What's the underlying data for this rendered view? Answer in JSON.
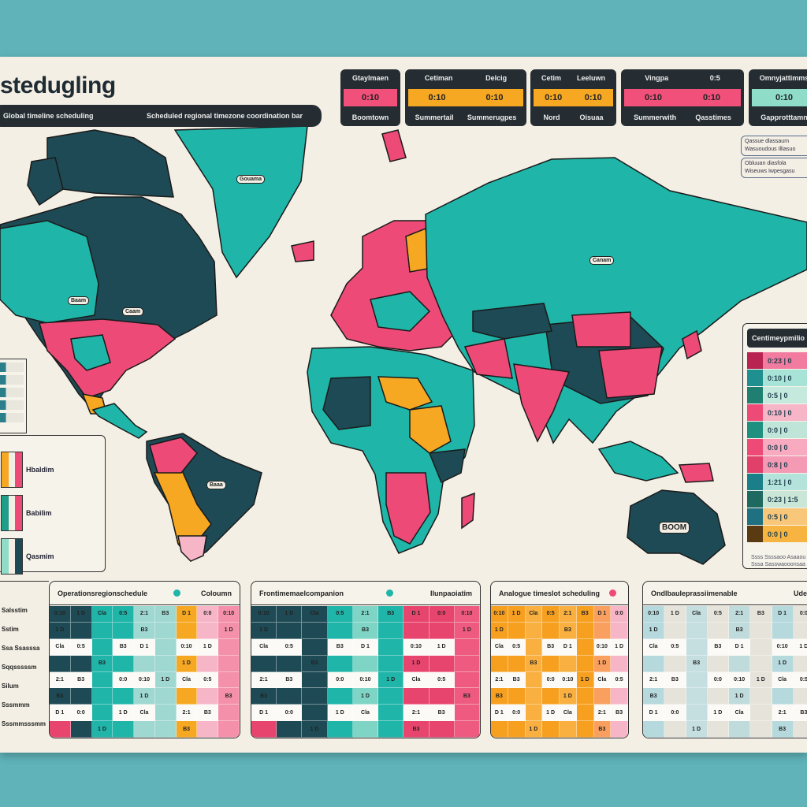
{
  "header": {
    "title": "stedugling",
    "subtitle_left": "Global timeline scheduling",
    "subtitle_right": "Scheduled regional timezone coordination bar"
  },
  "cards": [
    {
      "color": "#f0507a",
      "labels": [
        "Gtaylmaen"
      ],
      "values": [
        "0:10"
      ],
      "footers": [
        "Boomtown"
      ]
    },
    {
      "color": "#f7a823",
      "labels": [
        "Cetiman",
        "Delcig"
      ],
      "values": [
        "0:10",
        "0:10"
      ],
      "footers": [
        "Summertail",
        "Summerugpes"
      ]
    },
    {
      "color": "#f7a823",
      "labels": [
        "Cetim",
        "Leeluwn"
      ],
      "values": [
        "0:10",
        "0:10"
      ],
      "footers": [
        "Nord",
        "Oisuaa"
      ]
    },
    {
      "color": "#f0507a",
      "labels": [
        "Vingpa",
        "0:5"
      ],
      "values": [
        "0:10",
        "0:10"
      ],
      "footers": [
        "Summerwith",
        "Qasstimes"
      ]
    },
    {
      "color": "#8fdcc8",
      "labels": [
        "Omnyjattimms"
      ],
      "values": [
        "0:10"
      ],
      "footers": [
        "Gapprotttamn"
      ]
    }
  ],
  "notes": [
    [
      "Qassue dlassaum",
      "Wasuoudous Illiasuo"
    ],
    [
      "Obluuan diasfola",
      "Wiseuws Iwpesgasu"
    ]
  ],
  "map_labels": {
    "greenland": "Gouama",
    "asia": "Canam",
    "canada": "Baam",
    "usa": "Caam",
    "south_america": "Baaa",
    "australia": "BOOM"
  },
  "right_panel": {
    "title": "Centimeypmilio",
    "rows": [
      {
        "color": "#b8234f",
        "bg": "#f27ca0",
        "value": "0:23 | 0"
      },
      {
        "color": "#1f8f8f",
        "bg": "#a8e3d8",
        "value": "0:10 | 0"
      },
      {
        "color": "#1f7f70",
        "bg": "#c5e9dd",
        "value": "0:5 | 0"
      },
      {
        "color": "#ee4a78",
        "bg": "#f7b6c8",
        "value": "0:10 | 0"
      },
      {
        "color": "#1f8f80",
        "bg": "#bfe5d8",
        "value": "0:0 | 0"
      },
      {
        "color": "#ee4a78",
        "bg": "#f7aac0",
        "value": "0:0 | 0"
      },
      {
        "color": "#e0406a",
        "bg": "#f49ab5",
        "value": "0:8 | 0"
      },
      {
        "color": "#1a7f88",
        "bg": "#b4e3dc",
        "value": "1:21 | 0"
      },
      {
        "color": "#1e6a60",
        "bg": "#c9e6d6",
        "value": "0:23 | 1:5"
      },
      {
        "color": "#1f7080",
        "bg": "#f8c77a",
        "value": "0:5 | 0"
      },
      {
        "color": "#5a3a10",
        "bg": "#f8b440",
        "value": "0:0 | 0"
      }
    ],
    "footer": [
      "Ssss Ssssaoo Asaaou",
      "Sssa Sasswaooonsaa"
    ]
  },
  "legend": [
    {
      "label": "Hbaldim",
      "colors": [
        "#f7a823",
        "#f3efe4",
        "#ee4a78"
      ]
    },
    {
      "label": "Babilim",
      "colors": [
        "#1f9e8a",
        "#f3efe4",
        "#ee4a78"
      ]
    },
    {
      "label": "Qasmim",
      "colors": [
        "#8fdcc8",
        "#f3efe4",
        "#1e4a55"
      ]
    }
  ],
  "row_labels": [
    "",
    "Salsstim",
    "Sstim",
    "Ssa Ssasssa",
    "Sqqsssssm",
    "Silum",
    "Sssmmm",
    "Sssmmsssmm"
  ],
  "tables": [
    {
      "title": "Operationsregionschedule",
      "dot": "#1fb5a8",
      "right": "Coloumn",
      "palette": [
        "#1e4a55",
        "#1e4a55",
        "#1fb5a8",
        "#1fb5a8",
        "#9fd8d0",
        "#9fd8d0",
        "#f7a823",
        "#f6b6c8",
        "#f590ab"
      ]
    },
    {
      "title": "Frontimemaelcompanion",
      "dot": "#1fb5a8",
      "right": "Ilunpaoiatim",
      "palette": [
        "#1e4a55",
        "#1e4a55",
        "#1e4a55",
        "#1fb5a8",
        "#7fd5c5",
        "#1fb5a8",
        "#e8456e",
        "#e8456e",
        "#ee5a80"
      ]
    },
    {
      "title": "Analogue timeslot scheduling",
      "dot": "#ee4a78",
      "right": "",
      "palette": [
        "#f7a020",
        "#f7a020",
        "#f9b040",
        "#f7a020",
        "#f9b040",
        "#f7a020",
        "#f9a060",
        "#f6b6c8"
      ]
    },
    {
      "title": "Ondlbauleprassiimenable",
      "dot": "",
      "right": "Ude",
      "palette": [
        "#b5d9dc",
        "#e6e3da",
        "#c5dedf",
        "#e6e3da",
        "#c0dbdc",
        "#e6e3da",
        "#b5d9dc",
        "#e6e3da"
      ]
    }
  ],
  "cell_values": [
    "0:10",
    "1 D",
    "Cla",
    "0:5",
    "2:1",
    "B3",
    "D 1",
    "0:0"
  ]
}
